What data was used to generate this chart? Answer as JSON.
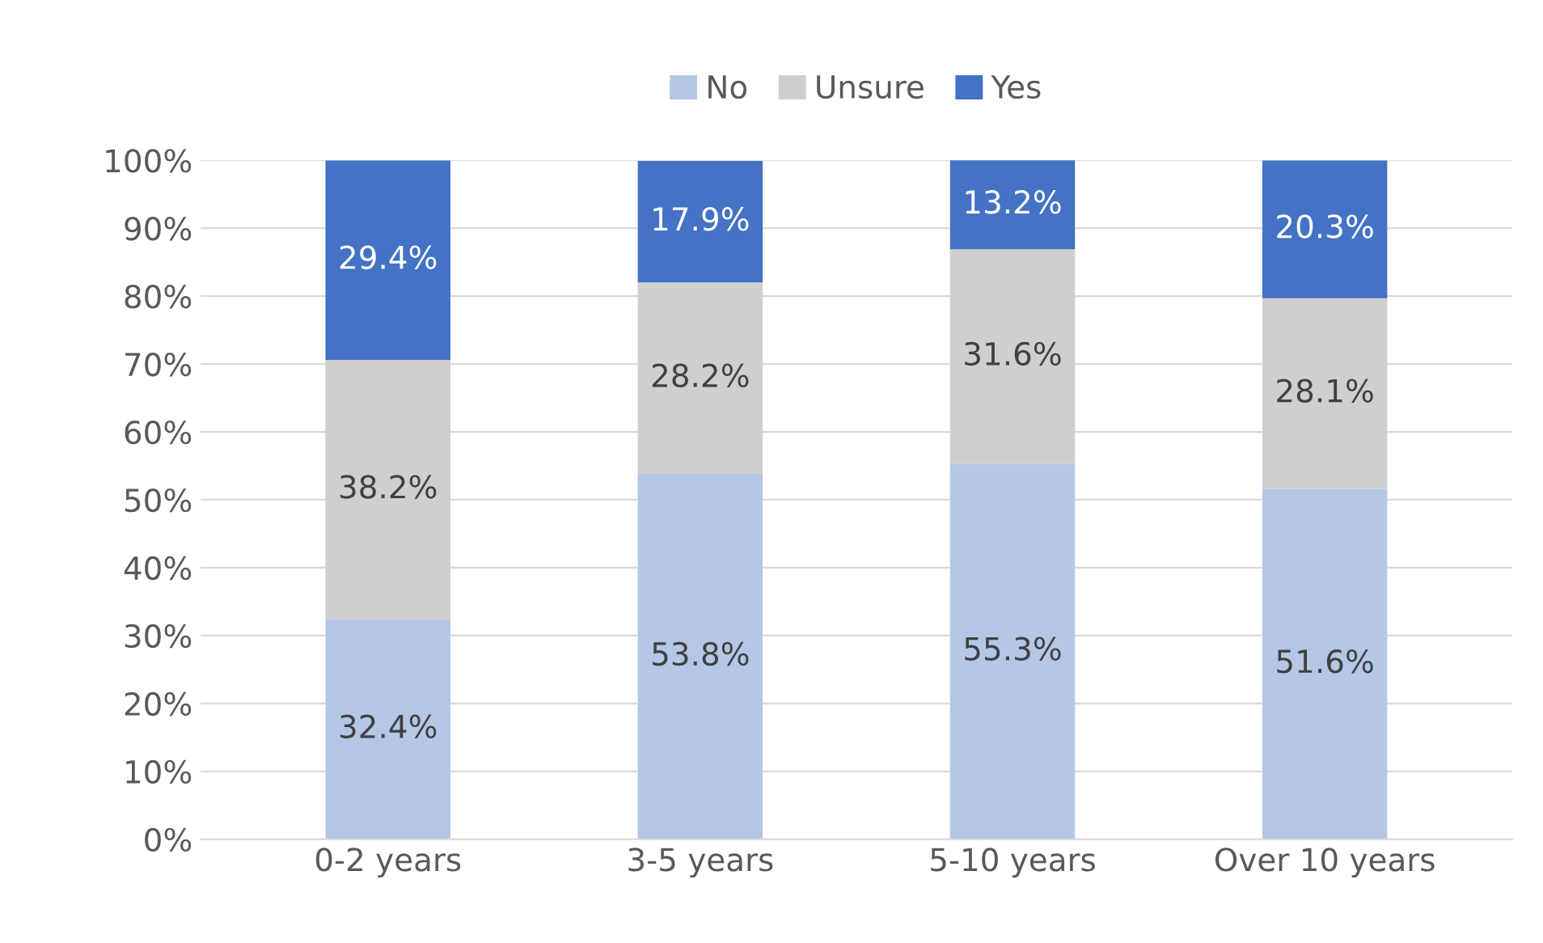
{
  "chart_data": {
    "type": "bar",
    "stacked": true,
    "categories": [
      "0-2 years",
      "3-5 years",
      "5-10 years",
      "Over 10 years"
    ],
    "series": [
      {
        "name": "No",
        "color": "#b4c7e7",
        "values": [
          32.4,
          53.8,
          55.3,
          51.6
        ],
        "value_labels": [
          "32.4%",
          "53.8%",
          "55.3%",
          "51.6%"
        ]
      },
      {
        "name": "Unsure",
        "color": "#d0cece",
        "values": [
          38.2,
          28.2,
          31.6,
          28.1
        ],
        "value_labels": [
          "38.2%",
          "28.2%",
          "31.6%",
          "28.1%"
        ]
      },
      {
        "name": "Yes",
        "color": "#4472c4",
        "values": [
          29.4,
          17.9,
          13.2,
          20.3
        ],
        "value_labels": [
          "29.4%",
          "17.9%",
          "13.2%",
          "20.3%"
        ]
      }
    ],
    "ylim": [
      0,
      100
    ],
    "yticks": [
      {
        "value": 0,
        "label": "0%"
      },
      {
        "value": 10,
        "label": "10%"
      },
      {
        "value": 20,
        "label": "20%"
      },
      {
        "value": 30,
        "label": "30%"
      },
      {
        "value": 40,
        "label": "40%"
      },
      {
        "value": 50,
        "label": "50%"
      },
      {
        "value": 60,
        "label": "60%"
      },
      {
        "value": 70,
        "label": "70%"
      },
      {
        "value": 80,
        "label": "80%"
      },
      {
        "value": 90,
        "label": "90%"
      },
      {
        "value": 100,
        "label": "100%"
      }
    ],
    "grid": "y",
    "legend": "top"
  }
}
